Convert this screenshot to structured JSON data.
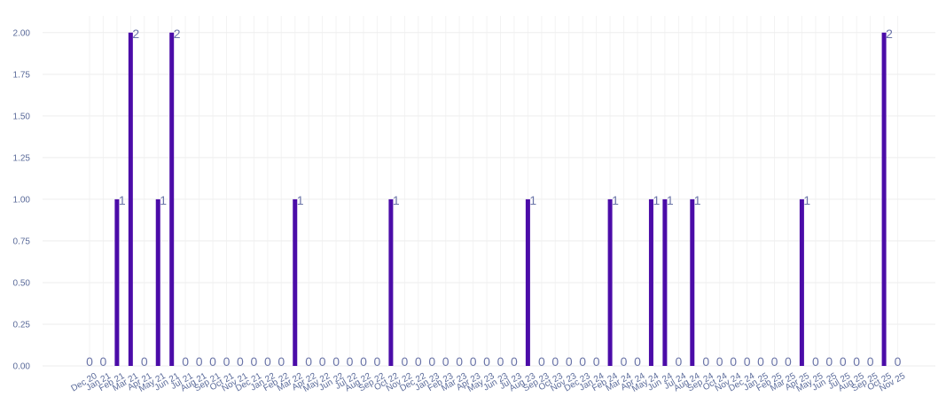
{
  "colors": {
    "bar": "#4b0ca8",
    "tick_text": "#5b6b9a",
    "data_label": "#6a74a8",
    "grid": "#eeeeee"
  },
  "chart_data": {
    "type": "bar",
    "title": "",
    "xlabel": "",
    "ylabel": "",
    "ylim": [
      0,
      2.1
    ],
    "yticks": [
      "0.00",
      "0.25",
      "0.50",
      "0.75",
      "1.00",
      "1.25",
      "1.50",
      "1.75",
      "2.00"
    ],
    "grid": true,
    "categories": [
      "Dec 20",
      "Jan 21",
      "Feb 21",
      "Mar 21",
      "Apr 21",
      "May 21",
      "Jun 21",
      "Jul 21",
      "Aug 21",
      "Sep 21",
      "Oct 21",
      "Nov 21",
      "Dec 21",
      "Jan 22",
      "Feb 22",
      "Mar 22",
      "Apr 22",
      "May 22",
      "Jun 22",
      "Jul 22",
      "Aug 22",
      "Sep 22",
      "Oct 22",
      "Nov 22",
      "Dec 22",
      "Jan 23",
      "Feb 23",
      "Mar 23",
      "Apr 23",
      "May 23",
      "Jun 23",
      "Jul 23",
      "Aug 23",
      "Sep 23",
      "Oct 23",
      "Nov 23",
      "Dec 23",
      "Jan 24",
      "Feb 24",
      "Mar 24",
      "Apr 24",
      "May 24",
      "Jun 24",
      "Jul 24",
      "Aug 24",
      "Sep 24",
      "Oct 24",
      "Nov 24",
      "Dec 24",
      "Jan 25",
      "Feb 25",
      "Mar 25",
      "Apr 25",
      "May 25",
      "Jun 25",
      "Jul 25",
      "Aug 25",
      "Sep 25",
      "Oct 25",
      "Nov 25"
    ],
    "values": [
      0,
      0,
      1,
      2,
      0,
      1,
      2,
      0,
      0,
      0,
      0,
      0,
      0,
      0,
      0,
      1,
      0,
      0,
      0,
      0,
      0,
      0,
      1,
      0,
      0,
      0,
      0,
      0,
      0,
      0,
      0,
      0,
      1,
      0,
      0,
      0,
      0,
      0,
      1,
      0,
      0,
      1,
      1,
      0,
      1,
      0,
      0,
      0,
      0,
      0,
      0,
      0,
      1,
      0,
      0,
      0,
      0,
      0,
      2,
      0
    ]
  }
}
